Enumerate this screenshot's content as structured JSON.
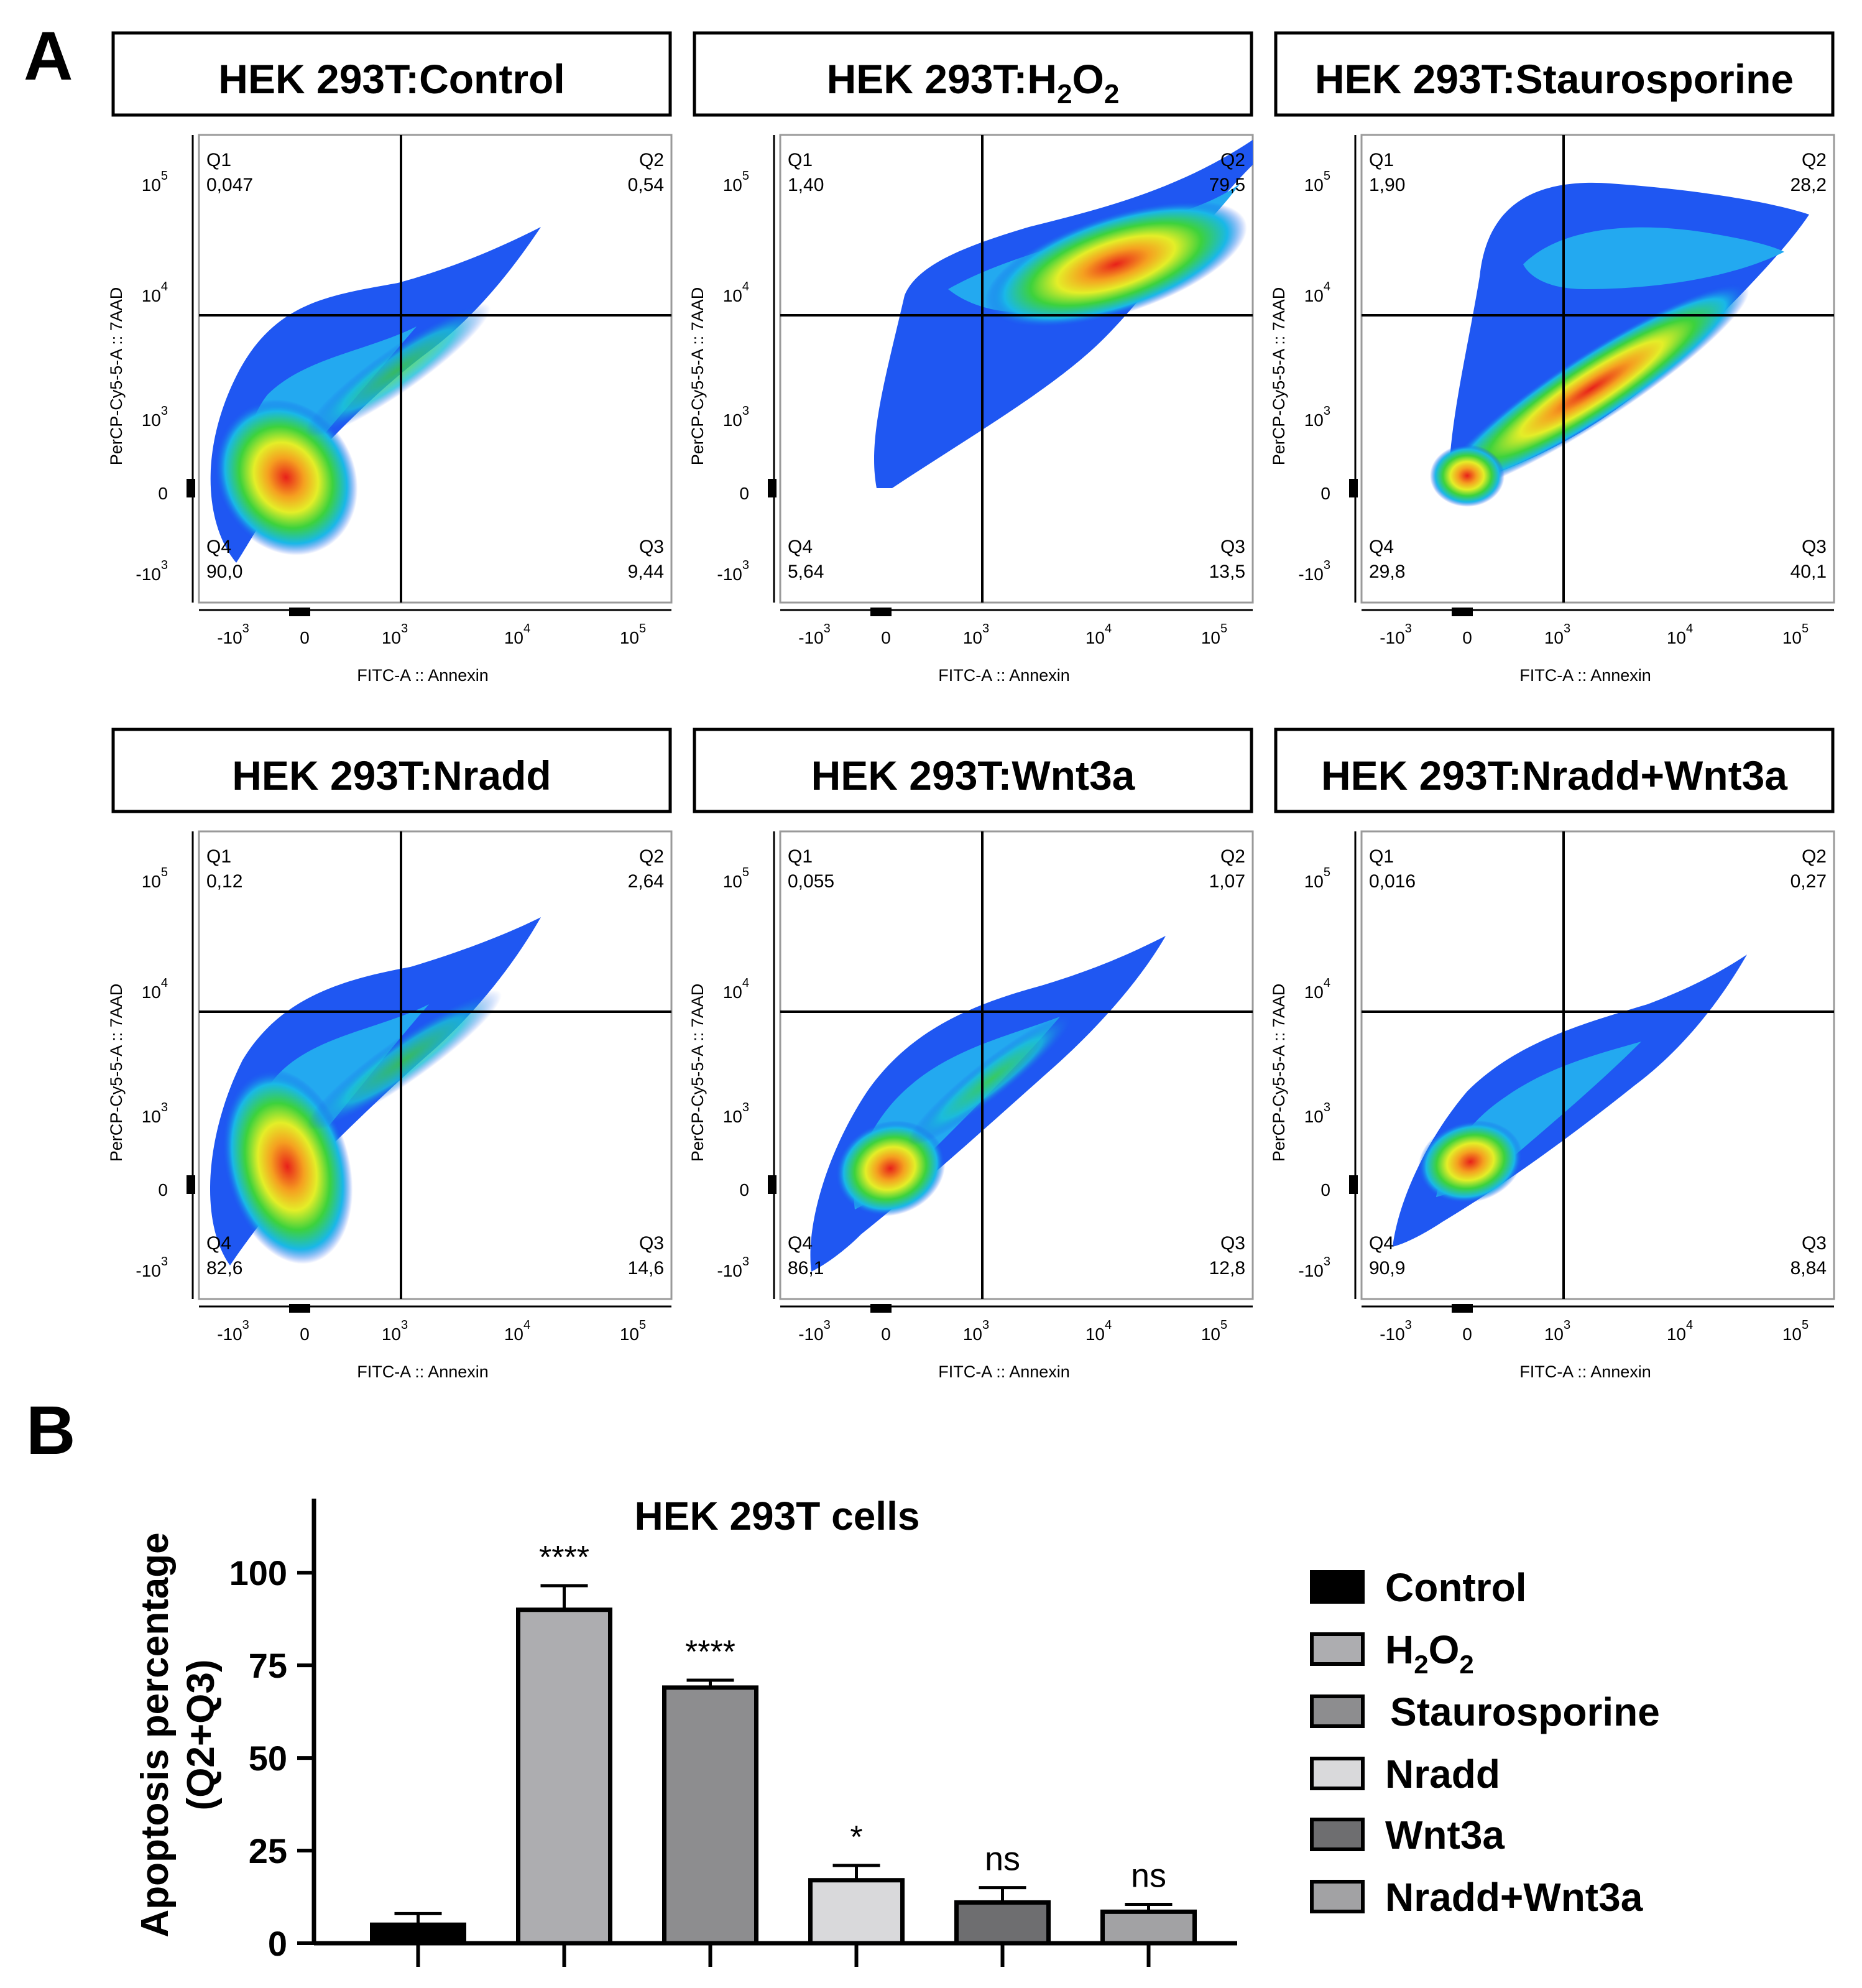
{
  "panel_a_label": "A",
  "panel_b_label": "B",
  "chart_data": [
    {
      "type": "scatter",
      "title_main": "HEK 293T:Control",
      "title_sub1": "",
      "title_mid": "",
      "title_sub2": "",
      "xlabel": "FITC-A :: Annexin",
      "ylabel": "PerCP-Cy5-5-A :: 7AAD",
      "quadrants": [
        {
          "name": "Q1",
          "value": "0,047"
        },
        {
          "name": "Q2",
          "value": "0,54"
        },
        {
          "name": "Q3",
          "value": "9,44"
        },
        {
          "name": "Q4",
          "value": "90,0"
        }
      ]
    },
    {
      "type": "scatter",
      "title_main": "HEK 293T:H",
      "title_sub1": "2",
      "title_mid": "O",
      "title_sub2": "2",
      "xlabel": "FITC-A :: Annexin",
      "ylabel": "PerCP-Cy5-5-A :: 7AAD",
      "quadrants": [
        {
          "name": "Q1",
          "value": "1,40"
        },
        {
          "name": "Q2",
          "value": "79,5"
        },
        {
          "name": "Q3",
          "value": "13,5"
        },
        {
          "name": "Q4",
          "value": "5,64"
        }
      ]
    },
    {
      "type": "scatter",
      "title_main": "HEK 293T:Staurosporine",
      "title_sub1": "",
      "title_mid": "",
      "title_sub2": "",
      "xlabel": "FITC-A :: Annexin",
      "ylabel": "PerCP-Cy5-5-A :: 7AAD",
      "quadrants": [
        {
          "name": "Q1",
          "value": "1,90"
        },
        {
          "name": "Q2",
          "value": "28,2"
        },
        {
          "name": "Q3",
          "value": "40,1"
        },
        {
          "name": "Q4",
          "value": "29,8"
        }
      ]
    },
    {
      "type": "scatter",
      "title_main": "HEK 293T:Nradd",
      "title_sub1": "",
      "title_mid": "",
      "title_sub2": "",
      "xlabel": "FITC-A :: Annexin",
      "ylabel": "PerCP-Cy5-5-A :: 7AAD",
      "quadrants": [
        {
          "name": "Q1",
          "value": "0,12"
        },
        {
          "name": "Q2",
          "value": "2,64"
        },
        {
          "name": "Q3",
          "value": "14,6"
        },
        {
          "name": "Q4",
          "value": "82,6"
        }
      ]
    },
    {
      "type": "scatter",
      "title_main": "HEK 293T:Wnt3a",
      "title_sub1": "",
      "title_mid": "",
      "title_sub2": "",
      "xlabel": "FITC-A :: Annexin",
      "ylabel": "PerCP-Cy5-5-A :: 7AAD",
      "quadrants": [
        {
          "name": "Q1",
          "value": "0,055"
        },
        {
          "name": "Q2",
          "value": "1,07"
        },
        {
          "name": "Q3",
          "value": "12,8"
        },
        {
          "name": "Q4",
          "value": "86,1"
        }
      ]
    },
    {
      "type": "scatter",
      "title_main": "HEK 293T:Nradd+Wnt3a",
      "title_sub1": "",
      "title_mid": "",
      "title_sub2": "",
      "xlabel": "FITC-A :: Annexin",
      "ylabel": "PerCP-Cy5-5-A :: 7AAD",
      "quadrants": [
        {
          "name": "Q1",
          "value": "0,016"
        },
        {
          "name": "Q2",
          "value": "0,27"
        },
        {
          "name": "Q3",
          "value": "8,84"
        },
        {
          "name": "Q4",
          "value": "90,9"
        }
      ]
    },
    {
      "type": "bar",
      "title": "HEK 293T cells",
      "ylabel_line1": "Apoptosis  percentage",
      "ylabel_line2": "(Q2+Q3)",
      "ylim": [
        0,
        120
      ],
      "yticks": [
        0,
        25,
        50,
        75,
        100
      ],
      "bars": [
        {
          "name": "Control",
          "value": 5,
          "error": 3,
          "sig": "",
          "color": "#000000"
        },
        {
          "name": "H2O2",
          "value": 90,
          "error": 6.5,
          "sig": "****",
          "color": "#adadb0"
        },
        {
          "name": "Staurosporine",
          "value": 69,
          "error": 2,
          "sig": "****",
          "color": "#8d8d8f"
        },
        {
          "name": "Nradd",
          "value": 17,
          "error": 4,
          "sig": "*",
          "color": "#d9d9db"
        },
        {
          "name": "Wnt3a",
          "value": 11,
          "error": 4,
          "sig": "ns",
          "color": "#6e6e70"
        },
        {
          "name": "Nradd+Wnt3a",
          "value": 8.5,
          "error": 2,
          "sig": "ns",
          "color": "#a2a2a4"
        }
      ],
      "legend_placement": "right"
    }
  ],
  "tick_labels": {
    "x_m3": "-10",
    "x_m3_exp": "3",
    "x_0": "0",
    "x_3": "10",
    "x_3_exp": "3",
    "x_4": "10",
    "x_4_exp": "4",
    "x_5": "10",
    "x_5_exp": "5",
    "y_5": "10",
    "y_5_exp": "5",
    "y_4": "10",
    "y_4_exp": "4",
    "y_3": "10",
    "y_3_exp": "3",
    "y_0": "0",
    "y_m3": "-10",
    "y_m3_exp": "3"
  },
  "legend": {
    "control": "Control",
    "h2o2_h": "H",
    "h2o2_s1": "2",
    "h2o2_o": "O",
    "h2o2_s2": "2",
    "stauro": "Staurosporine",
    "nradd": "Nradd",
    "wnt3a": "Wnt3a",
    "combo": "Nradd+Wnt3a"
  }
}
